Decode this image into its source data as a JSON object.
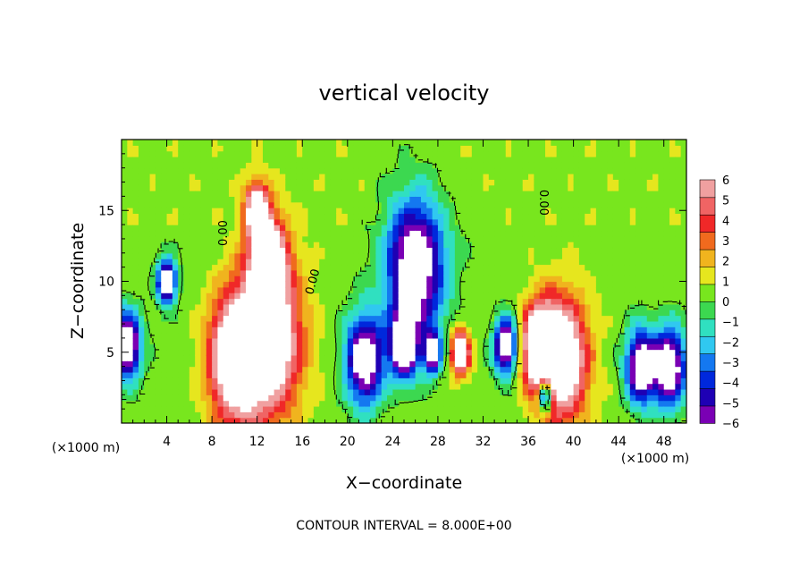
{
  "chart_data": {
    "type": "heatmap",
    "title": "vertical velocity",
    "xlabel": "X−coordinate",
    "ylabel": "Z−coordinate",
    "x_unit": "(×1000 m)",
    "y_unit": "(×1000 m)",
    "xlim": [
      0,
      50
    ],
    "ylim": [
      0,
      20
    ],
    "x_ticks": [
      4,
      8,
      12,
      16,
      20,
      24,
      28,
      32,
      36,
      40,
      44,
      48
    ],
    "y_ticks": [
      5,
      10,
      15
    ],
    "colorbar": {
      "ticks": [
        6,
        5,
        4,
        3,
        2,
        1,
        0,
        -1,
        -2,
        -3,
        -4,
        -5,
        -6
      ],
      "tick_labels": [
        "6",
        "5",
        "4",
        "3",
        "2",
        "1",
        "0",
        "−1",
        "−2",
        "−3",
        "−4",
        "−5",
        "−6"
      ],
      "range": [
        -6,
        6
      ],
      "colors": [
        "#7a00b4",
        "#1e00b4",
        "#0028dc",
        "#1478f0",
        "#30c8f0",
        "#30e0c0",
        "#3cd850",
        "#78e61e",
        "#e6e61e",
        "#f0b41e",
        "#f06a1e",
        "#f02828",
        "#f06464",
        "#f0a0a0"
      ]
    },
    "contour_label": "0.00",
    "contour_interval_text": "CONTOUR INTERVAL = 8.000E+00",
    "features": [
      {
        "x": 10,
        "z": 4.5,
        "w": 2.2,
        "sign": 1
      },
      {
        "x": 13,
        "z": 6.0,
        "w": 2.8,
        "sign": 1
      },
      {
        "x": 13,
        "z": 11.5,
        "w": 1.5,
        "sign": 1
      },
      {
        "x": 12,
        "z": 15.0,
        "w": 1.0,
        "sign": 1
      },
      {
        "x": 30,
        "z": 5.0,
        "w": 0.8,
        "sign": 1
      },
      {
        "x": 39,
        "z": 4.5,
        "w": 2.2,
        "sign": 1
      },
      {
        "x": 37,
        "z": 5.5,
        "w": 1.5,
        "sign": 1
      },
      {
        "x": 21.5,
        "z": 4.5,
        "w": 1.6,
        "sign": -1
      },
      {
        "x": 25,
        "z": 5.5,
        "w": 1.2,
        "sign": -1
      },
      {
        "x": 27.5,
        "z": 5.0,
        "w": 0.7,
        "sign": -1
      },
      {
        "x": 34,
        "z": 5.5,
        "w": 1.0,
        "sign": -1
      },
      {
        "x": 46,
        "z": 4.0,
        "w": 1.3,
        "sign": -1
      },
      {
        "x": 48.5,
        "z": 4.0,
        "w": 1.4,
        "sign": -1
      },
      {
        "x": 0.5,
        "z": 5.5,
        "w": 1.2,
        "sign": -1
      },
      {
        "x": 26,
        "z": 11.0,
        "w": 2.5,
        "sign": -1
      },
      {
        "x": 37.5,
        "z": 2.0,
        "w": 0.6,
        "sign": -1
      },
      {
        "x": 4,
        "z": 10.0,
        "w": 0.8,
        "sign": -1
      }
    ]
  }
}
